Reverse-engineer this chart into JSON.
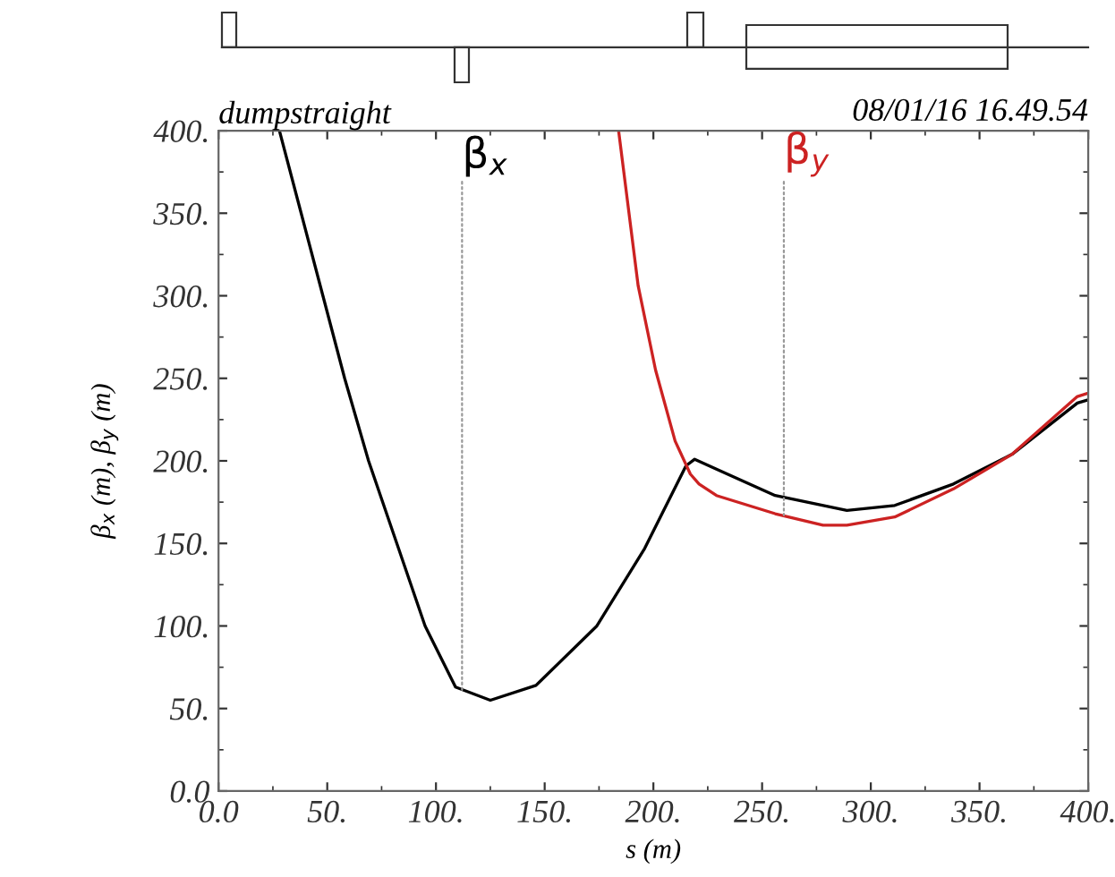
{
  "chart_data": {
    "type": "line",
    "title": "dumpstraight",
    "xlabel": "s (m)",
    "ylabel": "β$_{x}$ (m), β$_{y}$ (m)",
    "xlim": [
      0,
      400
    ],
    "ylim": [
      0,
      400
    ],
    "xticks": [
      {
        "value": 0,
        "label": "0.0"
      },
      {
        "value": 50,
        "label": "50."
      },
      {
        "value": 100,
        "label": "100."
      },
      {
        "value": 150,
        "label": "150."
      },
      {
        "value": 200,
        "label": "200."
      },
      {
        "value": 250,
        "label": "250."
      },
      {
        "value": 300,
        "label": "300."
      },
      {
        "value": 350,
        "label": "350."
      },
      {
        "value": 400,
        "label": "400."
      }
    ],
    "yticks": [
      {
        "value": 0,
        "label": "0.0"
      },
      {
        "value": 50,
        "label": "50."
      },
      {
        "value": 100,
        "label": "100."
      },
      {
        "value": 150,
        "label": "150."
      },
      {
        "value": 200,
        "label": "200."
      },
      {
        "value": 250,
        "label": "250."
      },
      {
        "value": 300,
        "label": "300."
      },
      {
        "value": 350,
        "label": "350."
      },
      {
        "value": 400,
        "label": "400."
      }
    ],
    "grid": false,
    "line_style": "solid",
    "marker": "none",
    "series": [
      {
        "color": "#000000",
        "x": [
          28,
          38,
          48,
          58,
          69,
          82,
          95,
          109,
          125,
          146,
          174,
          196,
          215,
          219,
          229,
          256,
          289,
          311,
          338,
          365,
          395,
          400
        ],
        "values": [
          400,
          350,
          300,
          250,
          200,
          150,
          100,
          63,
          55,
          64,
          100,
          147,
          197,
          201,
          195,
          179,
          170,
          173,
          186,
          204,
          235,
          237
        ]
      },
      {
        "color": "#cc2222",
        "x": [
          184,
          193,
          201,
          210,
          217,
          221,
          229,
          256,
          278,
          289,
          311,
          338,
          365,
          395,
          400
        ],
        "values": [
          400,
          306,
          255,
          212,
          192,
          186,
          179,
          168,
          161,
          161,
          166,
          183,
          204,
          239,
          241
        ]
      }
    ],
    "annotations": [
      {
        "text": "β$_{x}$",
        "x": 112,
        "y": 60
      },
      {
        "text": "β$_{y}$",
        "x": 260,
        "y": 167
      },
      "08/01/16 16.49.54"
    ]
  }
}
